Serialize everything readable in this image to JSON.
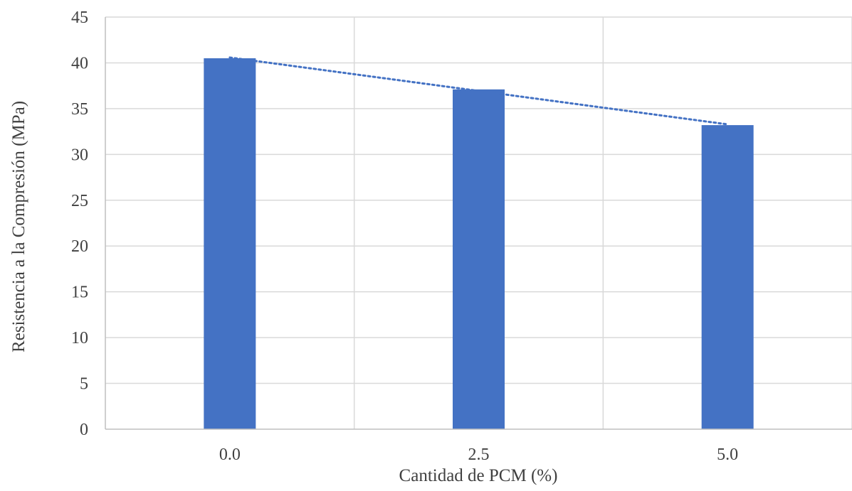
{
  "chart_data": {
    "type": "bar",
    "title": "",
    "xlabel": "Cantidad de PCM (%)",
    "ylabel": "Resistencia a la Compresión (MPa)",
    "categories": [
      "0.0",
      "2.5",
      "5.0"
    ],
    "series": [
      {
        "values": [
          40.5,
          37.1,
          33.2
        ]
      }
    ],
    "ylim": [
      0,
      45
    ],
    "yticks": [
      0,
      5,
      10,
      15,
      20,
      25,
      30,
      35,
      40,
      45
    ],
    "grid": {
      "horizontal": true,
      "vertical": true
    },
    "trendline": {
      "type": "linear",
      "style": "dotted"
    },
    "legend": "none",
    "colors": {
      "bar": "#4472C4",
      "trendline": "#4472C4",
      "grid": "#D9D9D9",
      "axis": "#BFBFBF"
    }
  }
}
